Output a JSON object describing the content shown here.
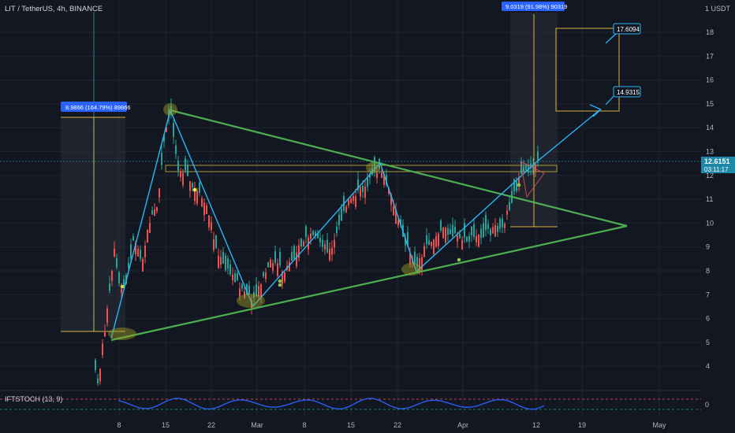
{
  "header": {
    "symbol": "LIT / TetherUS, 4h, BINANCE"
  },
  "price_axis": {
    "unit": "1 USDT",
    "ticks": [
      "18",
      "17",
      "16",
      "15",
      "14",
      "13",
      "12",
      "11",
      "10",
      "9",
      "8",
      "7",
      "6",
      "5",
      "4"
    ],
    "current_price": "12.6151",
    "countdown": "03:11:17"
  },
  "time_axis": {
    "labels": [
      "8",
      "15",
      "22",
      "Mar",
      "8",
      "15",
      "22",
      "Apr",
      "12",
      "19",
      "May"
    ]
  },
  "measure_boxes": {
    "left": "8.9866 (164.79%) 89866",
    "right": "9.0319 (91.98%) 90319"
  },
  "targets": {
    "upper": "17.6094",
    "lower": "14.9315"
  },
  "indicator": {
    "label": "IFTSTOCH (13, 9)",
    "zero_tick": "0"
  },
  "colors": {
    "background": "#131722",
    "grid": "#1f2430",
    "triangle": "#4caf50",
    "zigzag": "#29b6f6",
    "candle_up": "#26a69a",
    "candle_down": "#ef5350",
    "price_label": "#1e88a8",
    "measure_label": "#2962ff",
    "yellow_box": "#d4b53a"
  },
  "chart_data": {
    "type": "candlestick",
    "symbol": "LIT / TetherUS",
    "interval": "4h",
    "exchange": "BINANCE",
    "ylim": [
      3.5,
      19
    ],
    "last_price": 12.6151,
    "trendlines": [
      {
        "name": "triangle-upper",
        "points": [
          [
            "Feb 16",
            14.7
          ],
          [
            "Apr 24",
            9.85
          ]
        ]
      },
      {
        "name": "triangle-lower",
        "points": [
          [
            "Feb 5",
            5.1
          ],
          [
            "Apr 24",
            9.85
          ]
        ]
      }
    ],
    "zigzag": [
      [
        "Feb 5",
        5.2
      ],
      [
        "Feb 16",
        14.7
      ],
      [
        "Mar 1",
        6.5
      ],
      [
        "Mar 19",
        12.6
      ],
      [
        "Mar 26",
        7.9
      ],
      [
        "Apr 12",
        14.8
      ]
    ],
    "targets": [
      17.6094,
      14.9315
    ],
    "measures": [
      {
        "label": "8.9866 (164.79%) 89866",
        "from": 5.5,
        "to": 14.5
      },
      {
        "label": "9.0319 (91.98%) 90319",
        "from": 9.85,
        "to": 18.9
      }
    ]
  }
}
